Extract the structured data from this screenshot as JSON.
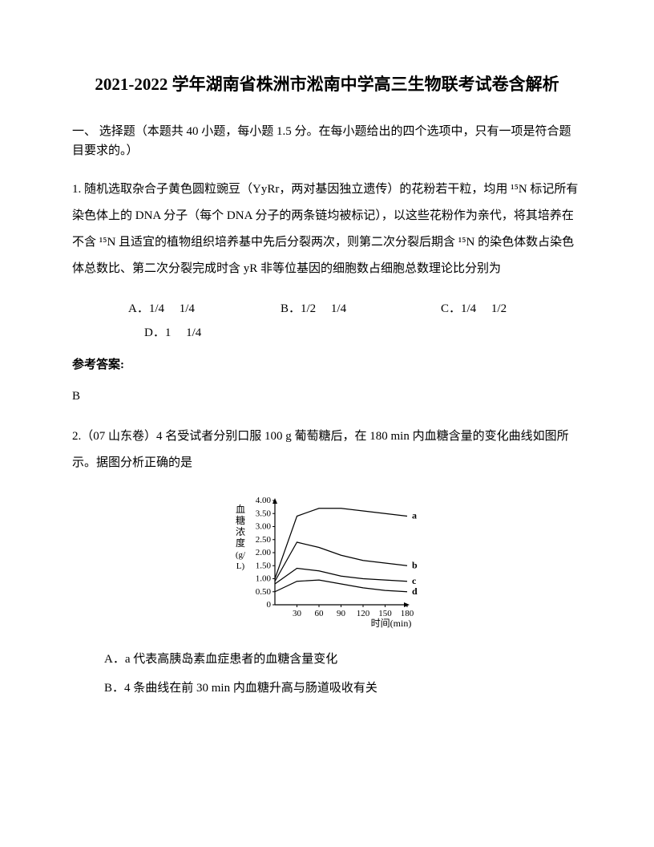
{
  "title": "2021-2022 学年湖南省株洲市淞南中学高三生物联考试卷含解析",
  "section_header": "一、 选择题（本题共 40 小题，每小题 1.5 分。在每小题给出的四个选项中，只有一项是符合题目要求的。）",
  "q1": {
    "text": "1. 随机选取杂合子黄色圆粒豌豆（YyRr，两对基因独立遗传）的花粉若干粒，均用 ¹⁵N 标记所有染色体上的 DNA 分子（每个 DNA 分子的两条链均被标记），以这些花粉作为亲代，将其培养在不含 ¹⁵N 且适宜的植物组织培养基中先后分裂两次，则第二次分裂后期含 ¹⁵N 的染色体数占染色体总数比、第二次分裂完成时含 yR 非等位基因的细胞数占细胞总数理论比分别为",
    "options": {
      "a": "A．1/4　 1/4",
      "b": "B．1/2　 1/4",
      "c": "C．1/4　 1/2",
      "d": "D．1　 1/4"
    }
  },
  "answer_label": "参考答案:",
  "q1_answer": "B",
  "q2": {
    "text": "2.（07 山东卷）4 名受试者分别口服 100 g 葡萄糖后，在 180 min 内血糖含量的变化曲线如图所示。据图分析正确的是",
    "opt_a": "A．a 代表高胰岛素血症患者的血糖含量变化",
    "opt_b": "B．4 条曲线在前 30 min 内血糖升高与肠道吸收有关"
  },
  "chart": {
    "y_label": "血糖浓度(g/L)",
    "x_label": "时间(min)",
    "y_ticks": [
      "0",
      "0.50",
      "1.00",
      "1.50",
      "2.00",
      "2.50",
      "3.00",
      "3.50",
      "4.00"
    ],
    "x_ticks": [
      "30",
      "60",
      "90",
      "120",
      "150",
      "180"
    ],
    "series": {
      "a": {
        "label": "a",
        "values": [
          1.0,
          3.4,
          3.7,
          3.7,
          3.6,
          3.5,
          3.4
        ]
      },
      "b": {
        "label": "b",
        "values": [
          0.9,
          2.4,
          2.2,
          1.9,
          1.7,
          1.6,
          1.5
        ]
      },
      "c": {
        "label": "c",
        "values": [
          0.8,
          1.4,
          1.3,
          1.1,
          1.0,
          0.95,
          0.9
        ]
      },
      "d": {
        "label": "d",
        "values": [
          0.5,
          0.9,
          0.95,
          0.8,
          0.65,
          0.55,
          0.5
        ]
      }
    },
    "ylim": [
      0,
      4.0
    ],
    "xlim": [
      0,
      180
    ],
    "line_color": "#000000",
    "line_width": 1.2,
    "font_size": 11
  }
}
